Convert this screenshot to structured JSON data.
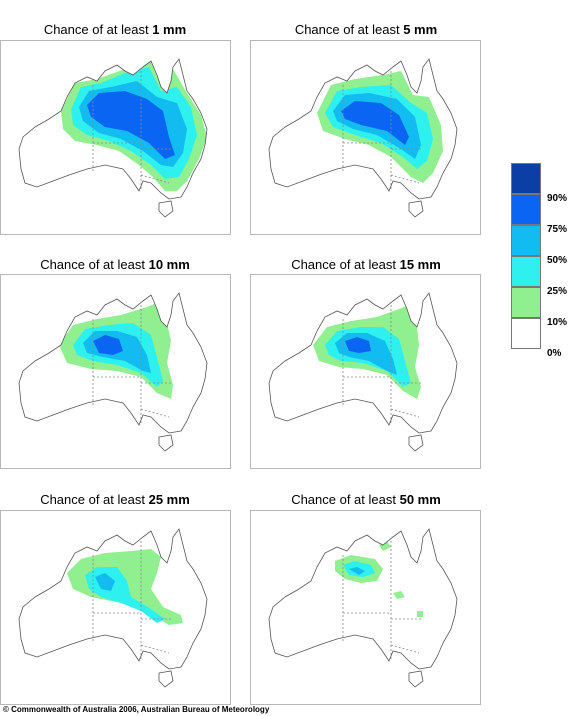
{
  "panels": [
    {
      "title_prefix": "Chance of at least ",
      "amount": "1 mm"
    },
    {
      "title_prefix": "Chance of at least ",
      "amount": "5 mm"
    },
    {
      "title_prefix": "Chance of at least ",
      "amount": "10 mm"
    },
    {
      "title_prefix": "Chance of at least ",
      "amount": "15 mm"
    },
    {
      "title_prefix": "Chance of at least ",
      "amount": "25 mm"
    },
    {
      "title_prefix": "Chance of at least ",
      "amount": "50 mm"
    }
  ],
  "legend": {
    "items": [
      {
        "label": "90%",
        "color": "#0b3fa5"
      },
      {
        "label": "75%",
        "color": "#0a66f2"
      },
      {
        "label": "50%",
        "color": "#12bcf0"
      },
      {
        "label": "25%",
        "color": "#2ef0ee"
      },
      {
        "label": "10%",
        "color": "#90f090"
      },
      {
        "label": "0%",
        "color": "#ffffff"
      }
    ]
  },
  "copyright": {
    "symbol": "©",
    "text": "Commonwealth of Australia 2006, Australian Bureau of Meteorology"
  }
}
